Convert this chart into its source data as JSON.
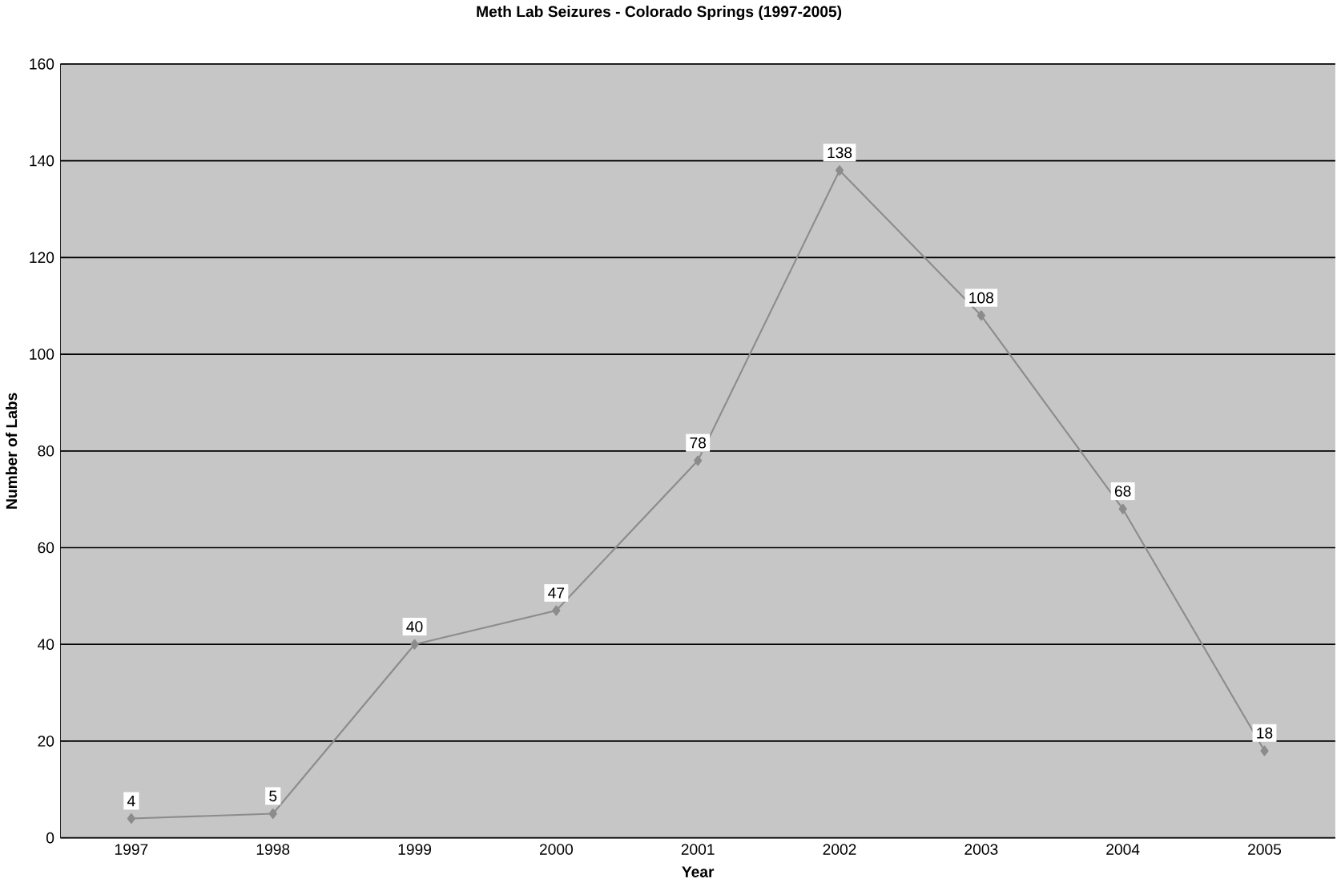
{
  "chart_data": {
    "type": "line",
    "title": "Meth Lab Seizures - Colorado Springs (1997-2005)",
    "xlabel": "Year",
    "ylabel": "Number of Labs",
    "categories": [
      "1997",
      "1998",
      "1999",
      "2000",
      "2001",
      "2002",
      "2003",
      "2004",
      "2005"
    ],
    "series": [
      {
        "color": "#8c8c8c",
        "values": [
          4,
          5,
          40,
          47,
          78,
          138,
          108,
          68,
          18
        ]
      }
    ],
    "ylim": [
      0,
      160
    ],
    "yticks": [
      0,
      20,
      40,
      60,
      80,
      100,
      120,
      140,
      160
    ],
    "grid": "y",
    "marker": "diamond",
    "line_style": "solid",
    "data_labels": true
  }
}
